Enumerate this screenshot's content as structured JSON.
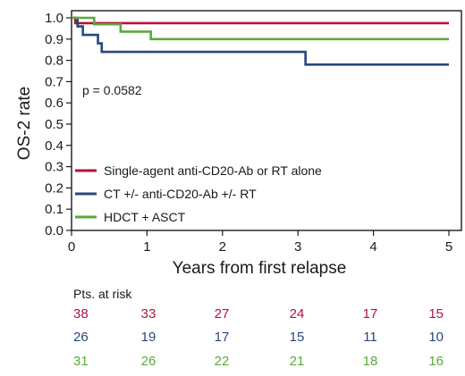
{
  "chart_data": {
    "type": "line",
    "step": true,
    "title": "",
    "xlabel": "Years from first relapse",
    "ylabel": "OS-2 rate",
    "xlim": [
      0,
      5
    ],
    "ylim": [
      0,
      1
    ],
    "x_ticks": [
      "0",
      "1",
      "2",
      "3",
      "4",
      "5"
    ],
    "y_ticks": [
      "0.0",
      "0.1",
      "0.2",
      "0.3",
      "0.4",
      "0.5",
      "0.6",
      "0.7",
      "0.8",
      "0.9",
      "1.0"
    ],
    "grid": false,
    "annotation": "p = 0.0582",
    "legend_position": "lower-left",
    "series": [
      {
        "name": "Single-agent anti-CD20-Ab or RT alone",
        "color": "#b5123a",
        "x": [
          0,
          0.05,
          5
        ],
        "y": [
          1.0,
          0.975,
          0.975
        ]
      },
      {
        "name": "CT +/- anti-CD20-Ab +/- RT",
        "color": "#27477d",
        "x": [
          0,
          0.08,
          0.15,
          0.35,
          0.4,
          3.1,
          5
        ],
        "y": [
          1.0,
          0.96,
          0.92,
          0.88,
          0.84,
          0.78,
          0.78
        ]
      },
      {
        "name": "HDCT + ASCT",
        "color": "#5aaa3c",
        "x": [
          0,
          0.3,
          0.65,
          1.05,
          5
        ],
        "y": [
          1.0,
          0.97,
          0.935,
          0.9,
          0.9
        ]
      }
    ],
    "at_risk": {
      "title": "Pts. at risk",
      "times": [
        0,
        1,
        2,
        3,
        4,
        5
      ],
      "rows": [
        {
          "color": "#b5123a",
          "values": [
            "38",
            "33",
            "27",
            "24",
            "17",
            "15"
          ]
        },
        {
          "color": "#27477d",
          "values": [
            "26",
            "19",
            "17",
            "15",
            "11",
            "10"
          ]
        },
        {
          "color": "#5aaa3c",
          "values": [
            "31",
            "26",
            "22",
            "21",
            "18",
            "16"
          ]
        }
      ]
    }
  }
}
